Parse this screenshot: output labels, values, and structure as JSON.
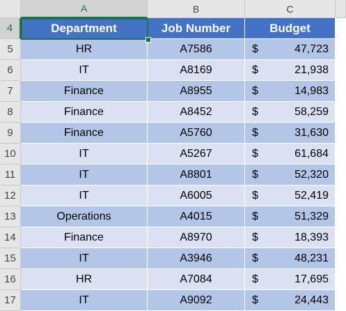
{
  "column_headers": [
    "A",
    "B",
    "C"
  ],
  "row_numbers": [
    4,
    5,
    6,
    7,
    8,
    9,
    10,
    11,
    12,
    13,
    14,
    15,
    16,
    17
  ],
  "table": {
    "headers": [
      "Department",
      "Job Number",
      "Budget"
    ],
    "rows": [
      [
        "HR",
        "A7586",
        "$",
        "47,723"
      ],
      [
        "IT",
        "A8169",
        "$",
        "21,938"
      ],
      [
        "Finance",
        "A8955",
        "$",
        "14,983"
      ],
      [
        "Finance",
        "A8452",
        "$",
        "58,259"
      ],
      [
        "Finance",
        "A5760",
        "$",
        "31,630"
      ],
      [
        "IT",
        "A5267",
        "$",
        "61,684"
      ],
      [
        "IT",
        "A8801",
        "$",
        "52,320"
      ],
      [
        "IT",
        "A6005",
        "$",
        "52,419"
      ],
      [
        "Operations",
        "A4015",
        "$",
        "51,329"
      ],
      [
        "Finance",
        "A8970",
        "$",
        "18,393"
      ],
      [
        "IT",
        "A3946",
        "$",
        "48,231"
      ],
      [
        "HR",
        "A7084",
        "$",
        "17,695"
      ],
      [
        "IT",
        "A9092",
        "$",
        "24,443"
      ]
    ]
  }
}
